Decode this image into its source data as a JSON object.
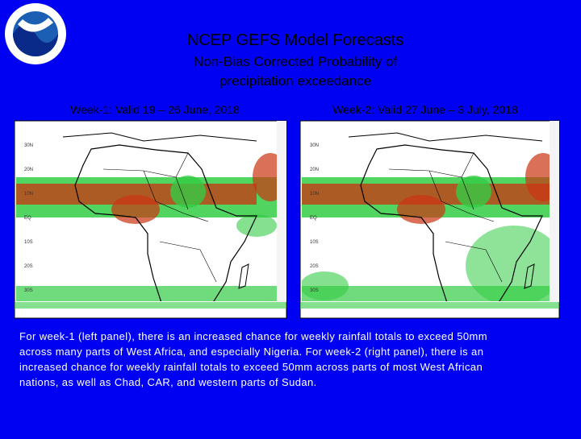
{
  "header": {
    "title": "NCEP GEFS Model Forecasts",
    "subtitle_lines": [
      "Non-Bias Corrected Probability of",
      "precipitation exceedance"
    ]
  },
  "panels": [
    {
      "label": "Week-1: Valid 19 – 26 June, 2018"
    },
    {
      "label": "Week-2: Valid 27 June – 3 July, 2018"
    }
  ],
  "lat_labels": [
    "30N",
    "20N",
    "10N",
    "EQ",
    "10S",
    "20S",
    "30S"
  ],
  "caption_lines": [
    "For week-1 (left panel), there is an increased chance for weekly rainfall totals to exceed 50mm",
    "across many parts of West Africa, and especially Nigeria. For week-2 (right panel), there is an",
    "increased chance for weekly rainfall totals to exceed 50mm across parts of most West African",
    "nations, as well as Chad, CAR, and western parts of Sudan."
  ]
}
